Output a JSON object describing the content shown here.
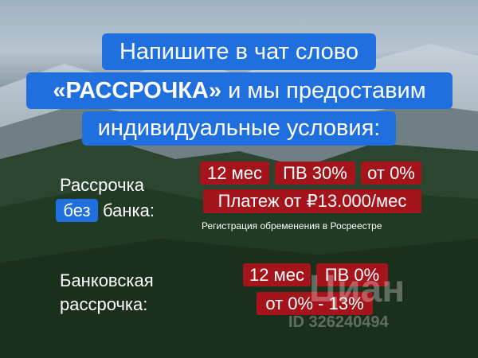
{
  "headline": {
    "line1": "Напишите в чат слово",
    "line2_bold": "«РАССРОЧКА»",
    "line2_rest": " и мы предоставим",
    "line3": "индивидуальные условия:"
  },
  "option1": {
    "label_line1": "Рассрочка",
    "label_highlight": "без",
    "label_line2_rest": "банка:",
    "term": "12 мес",
    "down_payment": "ПВ 30%",
    "rate": "от 0%",
    "payment": "Платеж от ₽13.000/мес",
    "note": "Регистрация обременения в Росреестре"
  },
  "option2": {
    "label_line1": "Банковская",
    "label_line2": "рассрочка:",
    "term": "12 мес",
    "down_payment": "ПВ 0%",
    "rate": "от 0% - 13%"
  },
  "watermark": {
    "brand": "Циан",
    "id": "ID 326240494"
  },
  "colors": {
    "blue": "#1f6fde",
    "red": "#a5141b"
  }
}
